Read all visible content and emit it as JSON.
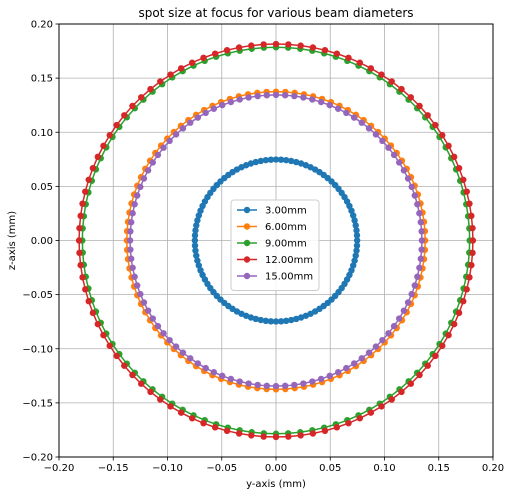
{
  "chart_data": {
    "type": "scatter",
    "title": "spot size at focus for various beam diameters",
    "xlabel": "y-axis (mm)",
    "ylabel": "z-axis (mm)",
    "xlim": [
      -0.2,
      0.2
    ],
    "ylim": [
      -0.2,
      0.2
    ],
    "xticks": [
      -0.2,
      -0.15,
      -0.1,
      -0.05,
      0.0,
      0.05,
      0.1,
      0.15,
      0.2
    ],
    "yticks": [
      -0.2,
      -0.15,
      -0.1,
      -0.05,
      0.0,
      0.05,
      0.1,
      0.15,
      0.2
    ],
    "xtick_labels": [
      "−0.20",
      "−0.15",
      "−0.10",
      "−0.05",
      "0.00",
      "0.05",
      "0.10",
      "0.15",
      "0.20"
    ],
    "ytick_labels": [
      "−0.20",
      "−0.15",
      "−0.10",
      "−0.05",
      "0.00",
      "0.05",
      "0.10",
      "0.15",
      "0.20"
    ],
    "grid": true,
    "legend_position": "center",
    "points_per_series": 100,
    "series": [
      {
        "name": "3.00mm",
        "color": "#1f77b4",
        "radius": 0.0748
      },
      {
        "name": "6.00mm",
        "color": "#ff7f0e",
        "radius": 0.1375
      },
      {
        "name": "9.00mm",
        "color": "#2ca02c",
        "radius": 0.1785
      },
      {
        "name": "12.00mm",
        "color": "#d62728",
        "radius": 0.1815
      },
      {
        "name": "15.00mm",
        "color": "#9467bd",
        "radius": 0.1345
      }
    ]
  }
}
